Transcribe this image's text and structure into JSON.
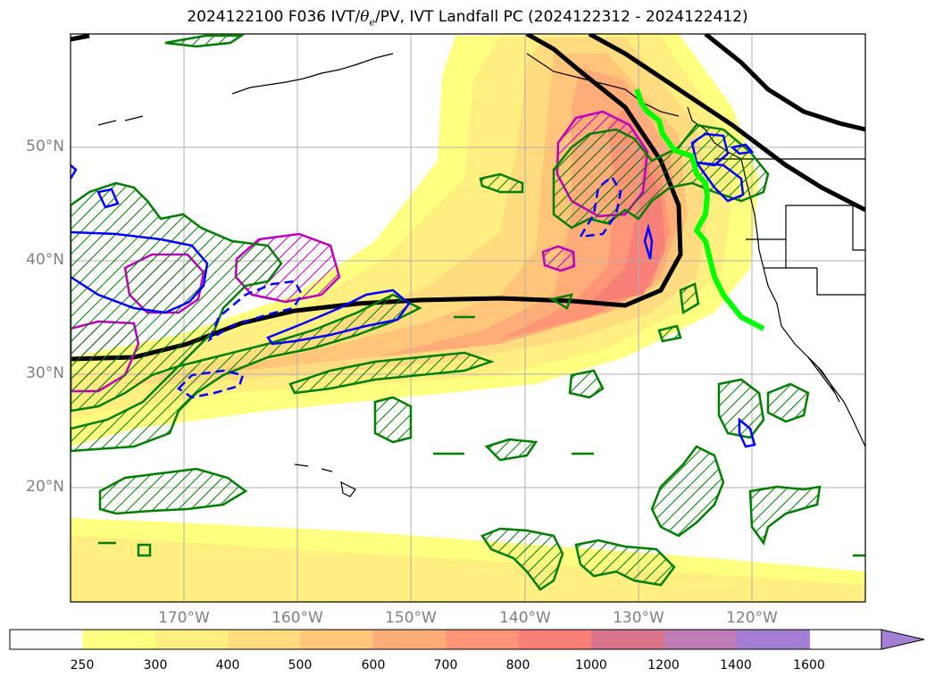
{
  "title": {
    "prefix": "2024122100 F036 IVT/",
    "theta": "θ",
    "theta_sub": "e",
    "suffix": "/PV, IVT Landfall PC (2024122312 - 2024122412)"
  },
  "lat_labels": [
    "50°N",
    "40°N",
    "30°N",
    "20°N"
  ],
  "lon_labels": [
    "170°W",
    "160°W",
    "150°W",
    "140°W",
    "130°W",
    "120°W"
  ],
  "colorbar": {
    "labels": [
      "250",
      "300",
      "400",
      "500",
      "600",
      "700",
      "800",
      "1000",
      "1200",
      "1400",
      "1600"
    ],
    "colors": [
      "#ffffff",
      "#ffff80",
      "#ffee80",
      "#ffdc80",
      "#ffc67a",
      "#ffad78",
      "#ff9476",
      "#f88078",
      "#d8758d",
      "#be7bb6",
      "#a57fd4"
    ],
    "extend": "max"
  },
  "colors": {
    "theta_e_contour": "#000000",
    "pv_pos": "#008000",
    "pv_neg": "#0000ff",
    "magenta": "#c000c0",
    "landfall": "#00ff00",
    "grid": "#b0b0b0",
    "axis_label": "#808080"
  }
}
